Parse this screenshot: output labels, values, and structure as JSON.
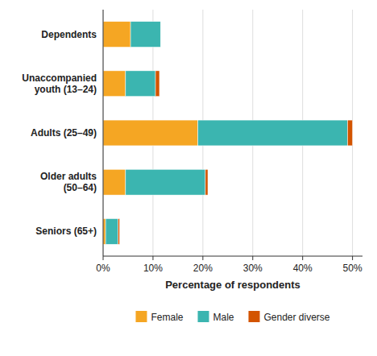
{
  "chart_data": {
    "type": "bar",
    "orientation": "horizontal",
    "stacked": true,
    "categories": [
      "Seniors (65+)",
      "Older adults\n(50–64)",
      "Adults (25–49)",
      "Unaccompanied\nyouth (13–24)",
      "Dependents"
    ],
    "series": [
      {
        "name": "Female",
        "color": "#F5A623",
        "values": [
          0.5,
          4.5,
          19.0,
          4.5,
          5.5
        ]
      },
      {
        "name": "Male",
        "color": "#3BB5B0",
        "values": [
          2.5,
          16.0,
          30.0,
          6.0,
          6.0
        ]
      },
      {
        "name": "Gender diverse",
        "color": "#D35400",
        "values": [
          0.3,
          0.5,
          1.0,
          0.8,
          0.0
        ]
      }
    ],
    "xlabel": "Percentage of respondents",
    "xlim": [
      0,
      52
    ],
    "xticks": [
      {
        "value": 0,
        "label": "0%"
      },
      {
        "value": 10,
        "label": "10%"
      },
      {
        "value": 20,
        "label": "20%"
      },
      {
        "value": 30,
        "label": "30%"
      },
      {
        "value": 40,
        "label": "40%"
      },
      {
        "value": 50,
        "label": "50%"
      }
    ],
    "grid": true,
    "legend": "bottom"
  }
}
